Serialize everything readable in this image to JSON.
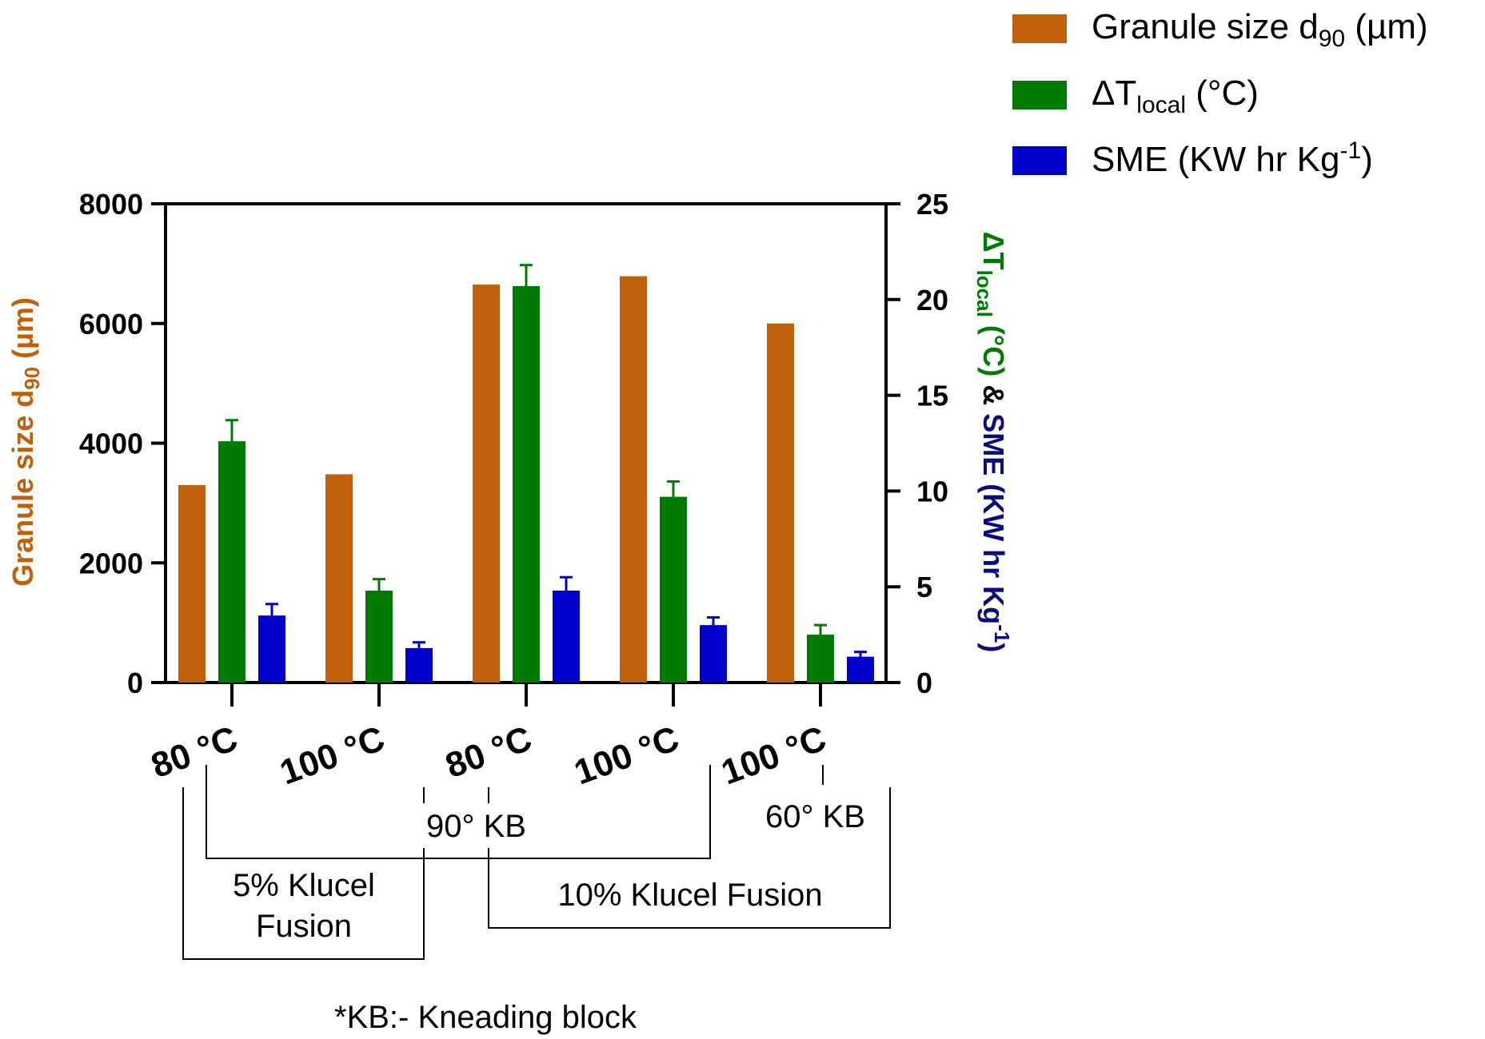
{
  "chart_data": {
    "type": "bar",
    "categories": [
      "80 °C",
      "100 °C",
      "80 °C",
      "100 °C",
      "100 °C"
    ],
    "series": [
      {
        "name": "Granule size d90 (µm)",
        "axis": "left",
        "color": "#C0600A",
        "values": [
          3300,
          3480,
          6650,
          6790,
          6000
        ],
        "errors": [
          0,
          0,
          0,
          0,
          0
        ]
      },
      {
        "name": "ΔTlocal (°C)",
        "axis": "right",
        "color": "#007A00",
        "values": [
          12.6,
          4.8,
          20.7,
          9.7,
          2.5
        ],
        "errors": [
          1.1,
          0.6,
          1.1,
          0.8,
          0.5
        ]
      },
      {
        "name": "SME (KW hr Kg-1)",
        "axis": "right",
        "color": "#0000CC",
        "values": [
          3.5,
          1.8,
          4.8,
          3.0,
          1.35
        ],
        "errors": [
          0.6,
          0.3,
          0.7,
          0.4,
          0.25
        ]
      }
    ],
    "left_axis": {
      "label_main": "Granule size d",
      "label_sub": "90",
      "label_tail": " (µm)",
      "ylim": [
        0,
        8000
      ],
      "ticks": [
        0,
        2000,
        4000,
        6000,
        8000
      ]
    },
    "right_axis": {
      "label_part1": "ΔT",
      "label_part1_sub": "local",
      "label_part1_tail": " (°C)",
      "label_join": " & ",
      "label_part2": "SME (KW hr Kg",
      "label_part2_sup": "-1",
      "label_part2_tail": ")",
      "ylim": [
        0,
        25
      ],
      "ticks": [
        0,
        5,
        10,
        15,
        20,
        25
      ]
    },
    "legend": {
      "placement": "top-right",
      "entries": [
        {
          "main": "Granule size d",
          "sub": "90",
          "tail": " (µm)",
          "color": "#C0600A"
        },
        {
          "main": "ΔT",
          "sub": "local",
          "tail": " (°C)",
          "color": "#007A00"
        },
        {
          "main": "SME (KW hr Kg",
          "sup": "-1",
          "tail": ")",
          "color": "#0000CC"
        }
      ]
    },
    "annotations": {
      "kb90": "90° KB",
      "kb60": "60° KB",
      "klucel5_line1": "5% Klucel",
      "klucel5_line2": "Fusion",
      "klucel10": "10% Klucel Fusion",
      "footnote": "*KB:- Kneading block"
    }
  }
}
